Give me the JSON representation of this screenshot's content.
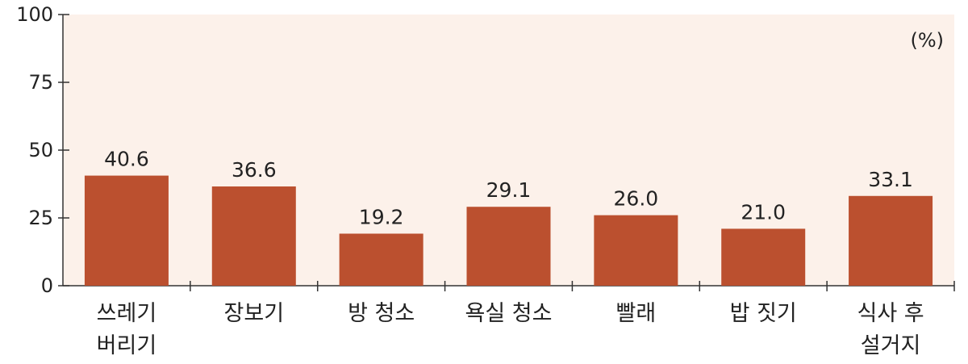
{
  "chart_data": {
    "type": "bar",
    "unit": "(%)",
    "categories": [
      "쓰레기\n버리기",
      "장보기",
      "방 청소",
      "욕실 청소",
      "빨래",
      "밥 짓기",
      "식사 후\n설거지"
    ],
    "values": [
      40.6,
      36.6,
      19.2,
      29.1,
      26.0,
      21.0,
      33.1
    ],
    "value_labels": [
      "40.6",
      "36.6",
      "19.2",
      "29.1",
      "26.0",
      "21.0",
      "33.1"
    ],
    "ylim": [
      0,
      100
    ],
    "yticks": [
      0,
      25,
      50,
      75,
      100
    ],
    "grid": false,
    "colors": {
      "bar": "#bb502f",
      "plot_background": "#fcf1ea",
      "axis": "#333333"
    }
  }
}
